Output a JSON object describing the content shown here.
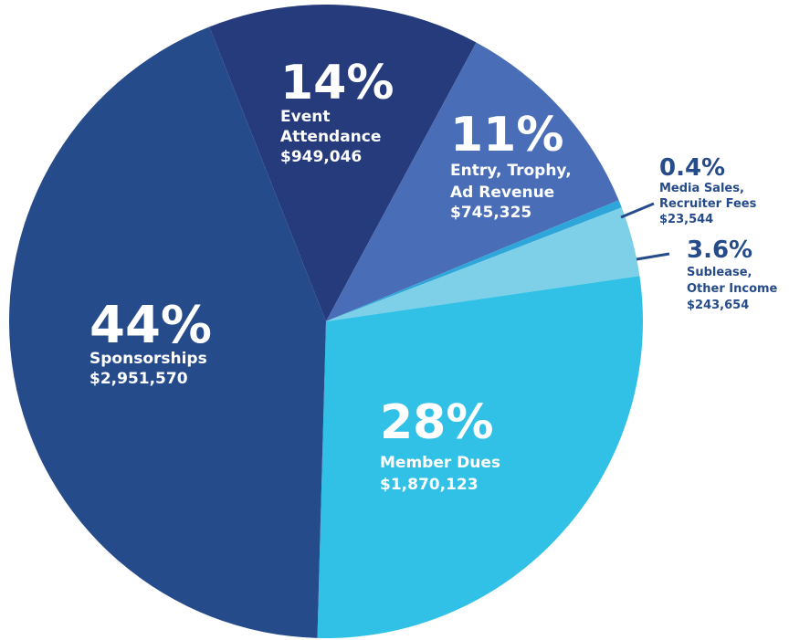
{
  "chart_data": {
    "type": "pie",
    "categories": [
      [
        "Event",
        "Attendance"
      ],
      [
        "Entry, Trophy,",
        "Ad Revenue"
      ],
      [
        "Media Sales,",
        "Recruiter Fees"
      ],
      [
        "Sublease,",
        "Other Income"
      ],
      [
        "Member Dues"
      ],
      [
        "Sponsorships"
      ]
    ],
    "values": [
      14,
      11,
      0.4,
      3.6,
      28,
      44
    ],
    "value_labels": [
      "14%",
      "11%",
      "0.4%",
      "3.6%",
      "28%",
      "44%"
    ],
    "amounts": [
      "$949,046",
      "$745,325",
      "$23,544",
      "$243,654",
      "$1,870,123",
      "$2,951,570"
    ],
    "colors": [
      "#263b7c",
      "#4a6db7",
      "#2ea6d9",
      "#7dd0e7",
      "#31c1e6",
      "#264b8a"
    ]
  }
}
